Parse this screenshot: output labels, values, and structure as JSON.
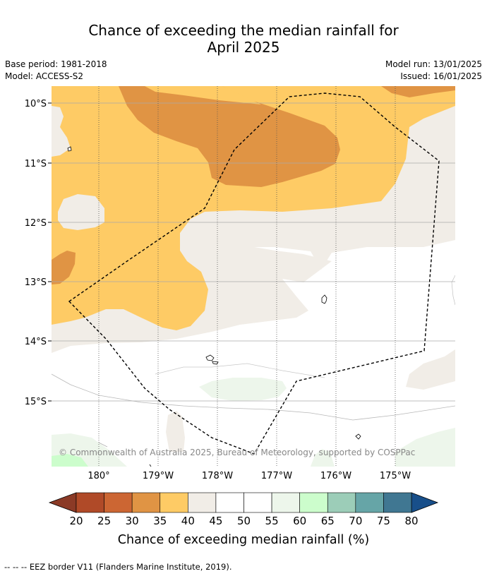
{
  "title": {
    "line1": "Chance of exceeding the median rainfall for",
    "line2": "April 2025"
  },
  "info": {
    "base_period": "Base period: 1981-2018",
    "model": "Model: ACCESS-S2",
    "model_run": "Model run: 13/01/2025",
    "issued": "Issued: 16/01/2025"
  },
  "map": {
    "lat_labels": [
      "10°S",
      "11°S",
      "12°S",
      "13°S",
      "14°S",
      "15°S"
    ],
    "lon_labels": [
      "180°",
      "179°W",
      "178°W",
      "177°W",
      "176°W",
      "175°W"
    ],
    "copyright": "© Commonwealth of Australia 2025, Bureau of Meteorology, supported by COSPPac"
  },
  "colorbar": {
    "tick_labels": [
      "20",
      "25",
      "30",
      "35",
      "40",
      "45",
      "50",
      "55",
      "60",
      "65",
      "70",
      "75",
      "80"
    ],
    "colors": [
      "#b04a28",
      "#cc6633",
      "#e09444",
      "#fecb65",
      "#f1ede7",
      "#ffffff",
      "#ffffff",
      "#edf6eb",
      "#ccfdcc",
      "#9ccdb8",
      "#66a5a7",
      "#407792"
    ],
    "under_color": "#8b3a26",
    "over_color": "#184f8a",
    "label": "Chance of exceeding median rainfall (%)"
  },
  "footnote": "--  --  -- EEZ border V11 (Flanders Marine Institute, 2019)."
}
